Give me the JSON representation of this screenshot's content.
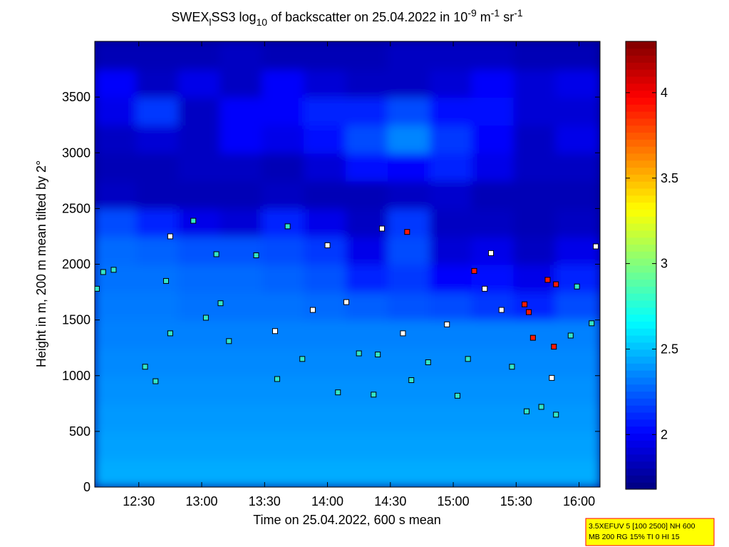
{
  "chart_data": {
    "type": "heatmap",
    "title_parts": [
      {
        "text": "SWEX"
      },
      {
        "text": "l",
        "shift": "sub"
      },
      {
        "text": "SS3 log"
      },
      {
        "text": "10",
        "shift": "sub"
      },
      {
        "text": " of backscatter on 25.04.2022 in 10"
      },
      {
        "text": "-9",
        "shift": "super"
      },
      {
        "text": " m"
      },
      {
        "text": "-1",
        "shift": "super"
      },
      {
        "text": " sr"
      },
      {
        "text": "-1",
        "shift": "super"
      }
    ],
    "xlabel": "Time on 25.04.2022, 600 s mean",
    "ylabel": "Height in m, 200 m mean tilted by 2°",
    "xlim": [
      729,
      970
    ],
    "xticks": [
      {
        "value": 750,
        "label": "12:30"
      },
      {
        "value": 780,
        "label": "13:00"
      },
      {
        "value": 810,
        "label": "13:30"
      },
      {
        "value": 840,
        "label": "14:00"
      },
      {
        "value": 870,
        "label": "14:30"
      },
      {
        "value": 900,
        "label": "15:00"
      },
      {
        "value": 930,
        "label": "15:30"
      },
      {
        "value": 960,
        "label": "16:00"
      }
    ],
    "ylim": [
      0,
      4000
    ],
    "yticks": [
      0,
      500,
      1000,
      1500,
      2000,
      2500,
      3000,
      3500
    ],
    "x_edges": [
      729,
      749,
      769,
      789,
      809,
      829,
      849,
      869,
      889,
      909,
      929,
      949,
      970
    ],
    "y_edges": [
      0,
      250,
      500,
      750,
      1000,
      1250,
      1500,
      1750,
      2000,
      2250,
      2500,
      2750,
      3000,
      3250,
      3500,
      3750,
      4000
    ],
    "z": [
      [
        2.45,
        2.45,
        2.45,
        2.45,
        2.45,
        2.45,
        2.45,
        2.45,
        2.45,
        2.45,
        2.45,
        2.45
      ],
      [
        2.42,
        2.42,
        2.42,
        2.42,
        2.42,
        2.42,
        2.42,
        2.42,
        2.42,
        2.42,
        2.42,
        2.42
      ],
      [
        2.4,
        2.4,
        2.4,
        2.4,
        2.4,
        2.4,
        2.4,
        2.4,
        2.4,
        2.4,
        2.4,
        2.4
      ],
      [
        2.38,
        2.38,
        2.38,
        2.38,
        2.38,
        2.38,
        2.38,
        2.38,
        2.38,
        2.38,
        2.38,
        2.38
      ],
      [
        2.36,
        2.36,
        2.36,
        2.36,
        2.36,
        2.36,
        2.36,
        2.36,
        2.36,
        2.36,
        2.36,
        2.36
      ],
      [
        2.34,
        2.34,
        2.34,
        2.34,
        2.34,
        2.34,
        2.34,
        2.34,
        2.34,
        2.34,
        2.34,
        2.34
      ],
      [
        2.32,
        2.32,
        2.3,
        2.3,
        2.3,
        2.28,
        2.25,
        2.22,
        2.2,
        2.15,
        2.1,
        2.2
      ],
      [
        2.3,
        2.3,
        2.28,
        2.28,
        2.26,
        2.22,
        2.1,
        2.15,
        2.0,
        2.05,
        1.95,
        2.1
      ],
      [
        2.28,
        2.26,
        2.22,
        2.22,
        2.2,
        2.15,
        1.95,
        2.2,
        1.9,
        1.95,
        1.85,
        1.95
      ],
      [
        2.2,
        2.1,
        1.95,
        1.9,
        2.1,
        1.95,
        1.85,
        2.15,
        1.85,
        1.85,
        1.82,
        1.85
      ],
      [
        1.85,
        1.82,
        1.82,
        1.82,
        1.85,
        1.82,
        1.82,
        1.85,
        1.88,
        1.82,
        1.82,
        1.82
      ],
      [
        1.82,
        1.82,
        1.85,
        1.85,
        1.82,
        1.9,
        2.05,
        2.0,
        2.1,
        1.95,
        1.85,
        1.85
      ],
      [
        1.85,
        1.9,
        1.85,
        2.0,
        1.95,
        2.05,
        2.2,
        2.35,
        2.15,
        2.0,
        1.85,
        1.95
      ],
      [
        1.95,
        2.15,
        1.85,
        2.0,
        2.0,
        2.1,
        2.1,
        2.2,
        2.05,
        2.05,
        1.9,
        1.9
      ],
      [
        2.0,
        1.85,
        1.95,
        1.85,
        2.0,
        1.9,
        1.85,
        1.85,
        1.9,
        2.0,
        1.9,
        1.95
      ],
      [
        1.82,
        1.82,
        1.82,
        1.85,
        1.82,
        1.82,
        1.82,
        1.85,
        1.85,
        1.85,
        1.82,
        1.82
      ]
    ],
    "colormap": "jet",
    "clim": [
      1.68,
      4.3
    ],
    "cticks": [
      2,
      2.5,
      3,
      3.5,
      4
    ],
    "markers": {
      "x": [
        730,
        733,
        738,
        765,
        763,
        765,
        753,
        758,
        776,
        782,
        787,
        789,
        793,
        806,
        815,
        816,
        821,
        828,
        833,
        840,
        845,
        849,
        855,
        864,
        862,
        866,
        876,
        878,
        880,
        888,
        897,
        902,
        907,
        910,
        915,
        918,
        923,
        928,
        934,
        936,
        935,
        942,
        949,
        938,
        945,
        949,
        956,
        959,
        968,
        966,
        948,
        947
      ],
      "y": [
        1780,
        1930,
        1950,
        2250,
        1850,
        1380,
        1080,
        950,
        2390,
        1520,
        2090,
        1650,
        1310,
        2080,
        1400,
        970,
        2340,
        1150,
        1590,
        2170,
        850,
        1660,
        1200,
        1190,
        830,
        2320,
        1380,
        2290,
        960,
        1120,
        1460,
        820,
        1150,
        1940,
        1780,
        2100,
        1590,
        1080,
        1640,
        1570,
        680,
        720,
        650,
        1340,
        1860,
        1820,
        1360,
        1800,
        2160,
        1470,
        1260,
        980
      ],
      "colors": [
        "#33e6c8",
        "#33e6c8",
        "#33e6c8",
        "#ffffff",
        "#33e6c8",
        "#33e6c8",
        "#33e6c8",
        "#33e6c8",
        "#33e6c8",
        "#33e6c8",
        "#33e6c8",
        "#33e6c8",
        "#33e6c8",
        "#33e6c8",
        "#ffffff",
        "#33e6c8",
        "#33e6c8",
        "#33e6c8",
        "#ffffff",
        "#ffffff",
        "#33e6c8",
        "#ffffff",
        "#33e6c8",
        "#33e6c8",
        "#33e6c8",
        "#ffffff",
        "#ffffff",
        "#ff1a00",
        "#33e6c8",
        "#33e6c8",
        "#ffffff",
        "#33e6c8",
        "#33e6c8",
        "#ff1a00",
        "#ffffff",
        "#ffffff",
        "#ffffff",
        "#33e6c8",
        "#ff1a00",
        "#ff1a00",
        "#33e6c8",
        "#33e6c8",
        "#33e6c8",
        "#ff1a00",
        "#ff1a00",
        "#ff1a00",
        "#33e6c8",
        "#33e6c8",
        "#ffffff",
        "#33e6c8",
        "#ff1a00",
        "#ffffff"
      ]
    },
    "info_box": [
      "3.5XEFUV 5 [100 2500] NH 600",
      "MB 200 RG 15% TI 0 HI 15"
    ]
  }
}
